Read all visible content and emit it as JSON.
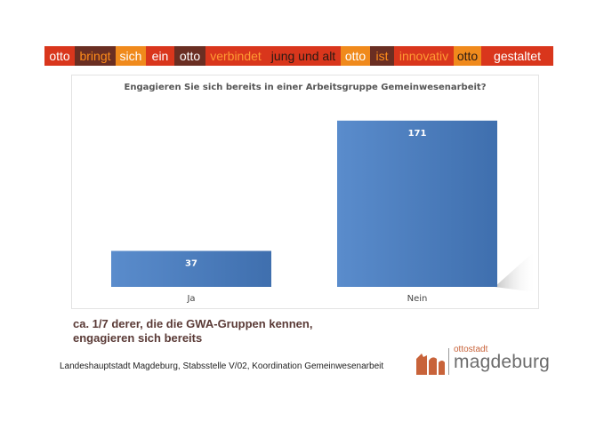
{
  "banner": {
    "segments": [
      {
        "text": "otto",
        "bg": "#d9361c",
        "fg": "#ffffff"
      },
      {
        "text": "bringt",
        "bg": "#6a2e22",
        "fg": "#ff8c1a"
      },
      {
        "text": "sich",
        "bg": "#f08a1c",
        "fg": "#ffffff"
      },
      {
        "text": "ein",
        "bg": "#d9361c",
        "fg": "#ffffff"
      },
      {
        "text": "otto",
        "bg": "#6a2e22",
        "fg": "#ffffff"
      },
      {
        "text": "verbindet",
        "bg": "#d9361c",
        "fg": "#ff9a33"
      },
      {
        "text": "jung und alt",
        "bg": "#d9361c",
        "fg": "#2a1a14"
      },
      {
        "text": "otto",
        "bg": "#f08a1c",
        "fg": "#ffffff"
      },
      {
        "text": "ist",
        "bg": "#6a2e22",
        "fg": "#ff8c1a"
      },
      {
        "text": "innovativ",
        "bg": "#d9361c",
        "fg": "#ff9a33"
      },
      {
        "text": "otto",
        "bg": "#f08a1c",
        "fg": "#2a1a14"
      },
      {
        "text": "gestaltet",
        "bg": "#d9361c",
        "fg": "#ffffff"
      }
    ]
  },
  "chart_data": {
    "type": "bar",
    "title": "Engagieren Sie sich bereits in einer Arbeitsgruppe Gemeinwesenarbeit?",
    "categories": [
      "Ja",
      "Nein"
    ],
    "values": [
      37,
      171
    ],
    "ylim": [
      0,
      190
    ],
    "grid": false,
    "legend": "none",
    "bar_color": "#4a7bbd",
    "data_labels": true
  },
  "caption": {
    "line1": "ca. 1/7 derer, die die GWA-Gruppen kennen,",
    "line2": "engagieren sich bereits"
  },
  "footer": {
    "text": "Landeshauptstadt Magdeburg, Stabsstelle V/02, Koordination Gemeinwesenarbeit"
  },
  "logo": {
    "small_text": "ottostadt",
    "big_text": "magdeburg",
    "colors": {
      "accent": "#c8633a",
      "text": "#6c6c6c"
    }
  }
}
